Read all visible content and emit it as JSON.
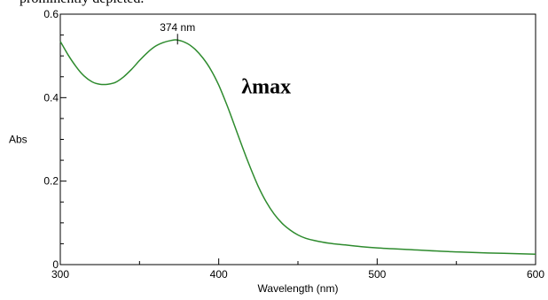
{
  "page_top_text": "prominently depleted.",
  "chart_data": {
    "type": "line",
    "title": "",
    "xlabel": "Wavelength (nm)",
    "ylabel": "Abs",
    "xlim": [
      300,
      600
    ],
    "ylim": [
      0,
      0.6
    ],
    "x_ticks": [
      300,
      400,
      500,
      600
    ],
    "x_tick_labels": [
      "300",
      "400",
      "500",
      "600"
    ],
    "y_ticks": [
      0,
      0.2,
      0.4,
      0.6
    ],
    "y_tick_labels": [
      "0",
      "0.2",
      "0.4",
      "0.6"
    ],
    "grid": false,
    "series": [
      {
        "color": "#2e8b2e",
        "x": [
          300,
          305,
          310,
          315,
          320,
          325,
          330,
          335,
          340,
          345,
          350,
          355,
          360,
          365,
          370,
          374,
          380,
          385,
          390,
          395,
          400,
          405,
          410,
          415,
          420,
          425,
          430,
          435,
          440,
          445,
          450,
          455,
          460,
          470,
          480,
          490,
          500,
          520,
          540,
          560,
          580,
          600
        ],
        "y": [
          0.535,
          0.502,
          0.474,
          0.452,
          0.438,
          0.432,
          0.432,
          0.437,
          0.45,
          0.468,
          0.489,
          0.508,
          0.523,
          0.532,
          0.537,
          0.538,
          0.53,
          0.516,
          0.495,
          0.467,
          0.43,
          0.384,
          0.333,
          0.281,
          0.232,
          0.187,
          0.15,
          0.121,
          0.099,
          0.083,
          0.071,
          0.063,
          0.058,
          0.051,
          0.047,
          0.043,
          0.04,
          0.036,
          0.032,
          0.029,
          0.027,
          0.025
        ]
      }
    ],
    "annotations": [
      {
        "text": "374 nm",
        "x": 374,
        "y": 0.538
      },
      {
        "text": "λmax",
        "x": 430,
        "y": 0.41
      }
    ]
  }
}
